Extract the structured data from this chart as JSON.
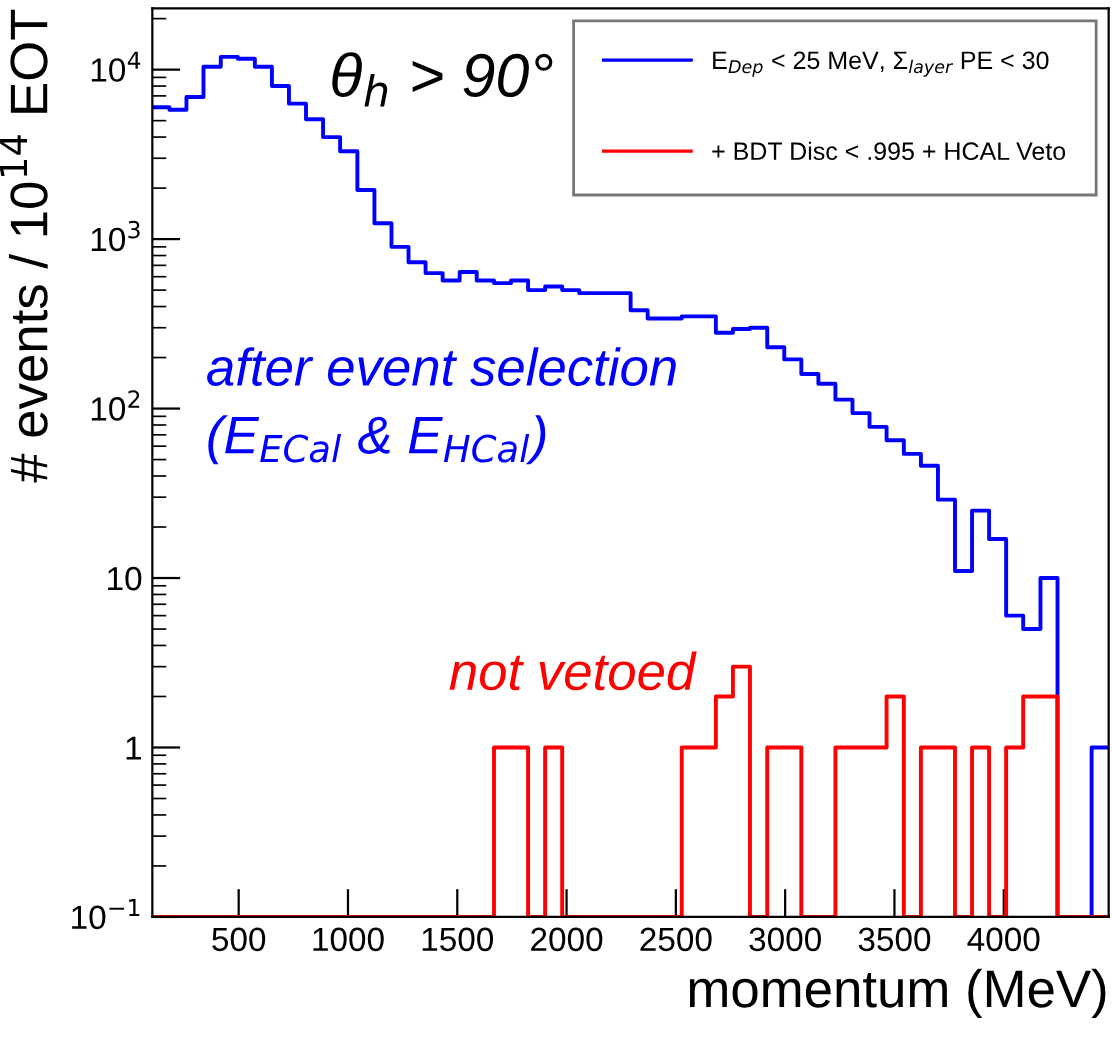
{
  "chart_data": {
    "type": "histogram",
    "xlabel": "momentum (MeV)",
    "ylabel": "# events / 10$^{14}$ EOT",
    "bins": [
      105,
      183,
      261,
      339,
      418,
      496,
      574,
      652,
      730,
      808,
      886,
      964,
      1043,
      1121,
      1199,
      1277,
      1355,
      1433,
      1511,
      1589,
      1668,
      1746,
      1824,
      1902,
      1980,
      2058,
      2136,
      2214,
      2293,
      2371,
      2449,
      2527,
      2605,
      2683,
      2761,
      2839,
      2918,
      2996,
      3074,
      3152,
      3230,
      3308,
      3386,
      3464,
      3543,
      3621,
      3699,
      3777,
      3855,
      3933,
      4011,
      4089,
      4168,
      4246,
      4324,
      4402,
      4480
    ],
    "series": [
      {
        "name": "E$_{Dep}$ < 25 MeV, Σ$_{layer}$ PE < 30",
        "color": "#0000ff",
        "values": [
          6000,
          5800,
          6900,
          10400,
          11900,
          11600,
          10400,
          8000,
          6300,
          5100,
          4000,
          3300,
          1950,
          1240,
          900,
          730,
          630,
          570,
          640,
          570,
          550,
          570,
          500,
          525,
          500,
          480,
          480,
          480,
          380,
          340,
          340,
          350,
          350,
          280,
          295,
          300,
          230,
          195,
          160,
          140,
          113,
          94,
          78,
          65,
          54,
          46,
          29,
          11,
          25,
          17,
          6,
          5,
          10,
          null,
          null,
          1
        ]
      },
      {
        "name": "+ BDT Disc < .995 + HCAL Veto",
        "color": "#ff0000",
        "values": [
          null,
          null,
          null,
          null,
          null,
          null,
          null,
          null,
          null,
          null,
          null,
          null,
          null,
          null,
          null,
          null,
          null,
          null,
          null,
          null,
          1,
          1,
          null,
          1,
          null,
          null,
          null,
          null,
          null,
          null,
          null,
          1,
          1,
          2,
          3,
          null,
          1,
          1,
          null,
          null,
          1,
          1,
          1,
          2,
          null,
          1,
          1,
          null,
          1,
          null,
          1,
          2,
          2,
          null,
          null,
          null
        ]
      }
    ],
    "annotations": [
      "θ$_{h}$ > 90°",
      "after event selection",
      "(E$_{ECal}$ & E$_{HCal}$)",
      "not vetoed"
    ],
    "xlim": [
      105,
      4480
    ],
    "ylim": [
      0.1,
      23000
    ],
    "log": "y",
    "xticks": [
      500,
      1000,
      1500,
      2000,
      2500,
      3000,
      3500,
      4000
    ],
    "yticks": [
      {
        "value": 0.1,
        "label": "10$^{−1}$"
      },
      1,
      10,
      {
        "value": 100,
        "label": "10$^{2}$"
      },
      {
        "value": 1000,
        "label": "10$^{3}$"
      },
      {
        "value": 10000,
        "label": "10$^{4}$"
      }
    ],
    "grid": false,
    "legend": "top right"
  }
}
